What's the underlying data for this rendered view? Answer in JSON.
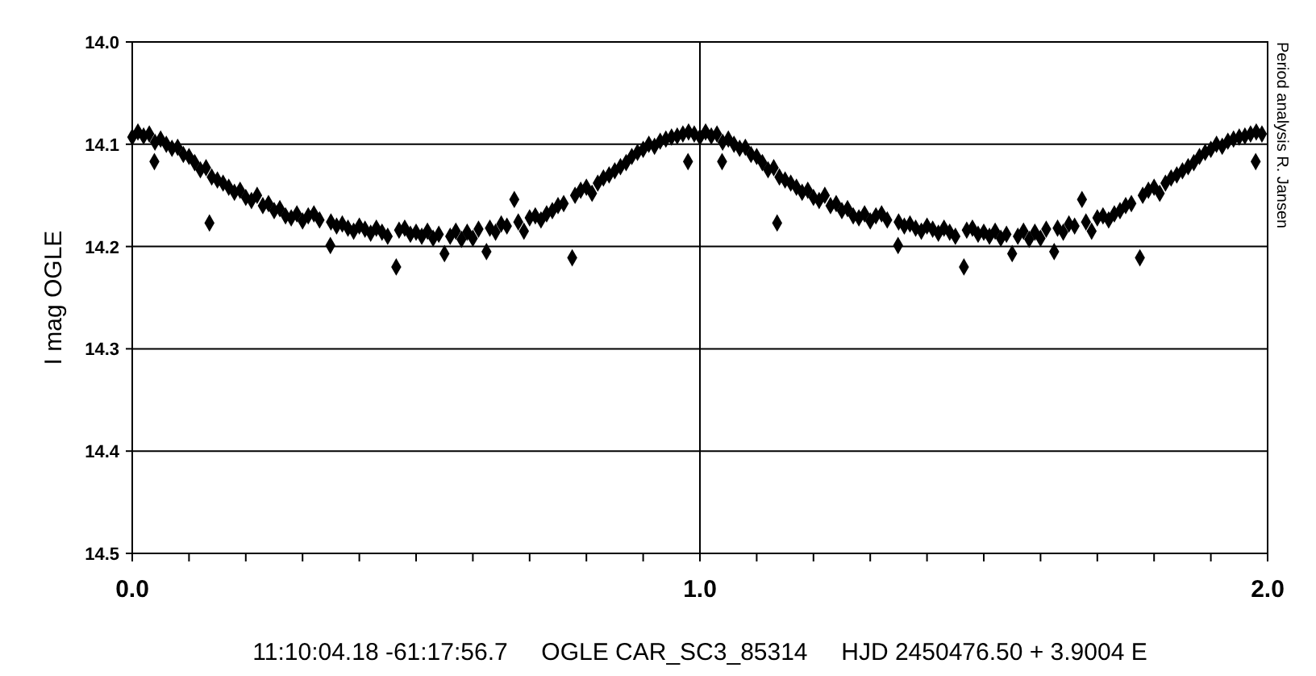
{
  "chart_data": {
    "type": "scatter",
    "xlabel": "11:10:04.18 -61:17:56.7     OGLE CAR_SC3_85314     HJD 2450476.50 + 3.9004 E",
    "ylabel": "I mag OGLE",
    "annotations": [
      "Period analysis R. Jansen"
    ],
    "marker": "diamond",
    "grid": true,
    "xlim": [
      0,
      2
    ],
    "ylim": [
      14.5,
      14.0
    ],
    "xticks": [
      {
        "value": 0,
        "label": "0.0"
      },
      {
        "value": 0.1,
        "label": null
      },
      {
        "value": 0.2,
        "label": null
      },
      {
        "value": 0.3,
        "label": null
      },
      {
        "value": 0.4,
        "label": null
      },
      {
        "value": 0.5,
        "label": null
      },
      {
        "value": 0.6,
        "label": null
      },
      {
        "value": 0.7,
        "label": null
      },
      {
        "value": 0.8,
        "label": null
      },
      {
        "value": 0.9,
        "label": null
      },
      {
        "value": 1,
        "label": "1.0"
      },
      {
        "value": 1.1,
        "label": null
      },
      {
        "value": 1.2,
        "label": null
      },
      {
        "value": 1.3,
        "label": null
      },
      {
        "value": 1.4,
        "label": null
      },
      {
        "value": 1.5,
        "label": null
      },
      {
        "value": 1.6,
        "label": null
      },
      {
        "value": 1.7,
        "label": null
      },
      {
        "value": 1.8,
        "label": null
      },
      {
        "value": 1.9,
        "label": null
      },
      {
        "value": 2,
        "label": "2.0"
      }
    ],
    "yticks": [
      {
        "value": 14.0,
        "label": "14.0"
      },
      {
        "value": 14.1,
        "label": "14.1"
      },
      {
        "value": 14.2,
        "label": "14.2"
      },
      {
        "value": 14.3,
        "label": "14.3"
      },
      {
        "value": 14.4,
        "label": "14.4"
      },
      {
        "value": 14.5,
        "label": "14.5"
      }
    ],
    "series": [
      {
        "color": "#000000",
        "x": [
          0.0,
          0.01,
          0.02,
          0.03,
          0.04,
          0.039,
          0.05,
          0.06,
          0.07,
          0.08,
          0.09,
          0.1,
          0.11,
          0.12,
          0.13,
          0.136,
          0.14,
          0.15,
          0.16,
          0.17,
          0.18,
          0.19,
          0.2,
          0.21,
          0.22,
          0.23,
          0.24,
          0.25,
          0.26,
          0.27,
          0.28,
          0.29,
          0.3,
          0.31,
          0.32,
          0.33,
          0.349,
          0.35,
          0.36,
          0.37,
          0.38,
          0.39,
          0.4,
          0.41,
          0.42,
          0.43,
          0.44,
          0.45,
          0.465,
          0.47,
          0.48,
          0.49,
          0.5,
          0.51,
          0.52,
          0.53,
          0.54,
          0.55,
          0.56,
          0.57,
          0.58,
          0.59,
          0.6,
          0.61,
          0.624,
          0.63,
          0.64,
          0.65,
          0.66,
          0.673,
          0.68,
          0.69,
          0.7,
          0.71,
          0.72,
          0.73,
          0.74,
          0.75,
          0.76,
          0.775,
          0.78,
          0.79,
          0.8,
          0.81,
          0.82,
          0.83,
          0.84,
          0.85,
          0.86,
          0.87,
          0.88,
          0.89,
          0.9,
          0.91,
          0.92,
          0.93,
          0.94,
          0.95,
          0.96,
          0.97,
          0.979,
          0.98,
          0.99
        ],
        "values": [
          14.093,
          14.088,
          14.092,
          14.09,
          14.098,
          14.117,
          14.095,
          14.1,
          14.104,
          14.103,
          14.11,
          14.112,
          14.118,
          14.125,
          14.123,
          14.177,
          14.132,
          14.135,
          14.138,
          14.142,
          14.147,
          14.145,
          14.152,
          14.155,
          14.15,
          14.16,
          14.158,
          14.165,
          14.163,
          14.17,
          14.172,
          14.168,
          14.175,
          14.17,
          14.168,
          14.174,
          14.199,
          14.176,
          14.18,
          14.178,
          14.182,
          14.185,
          14.18,
          14.183,
          14.187,
          14.182,
          14.186,
          14.19,
          14.22,
          14.184,
          14.182,
          14.188,
          14.186,
          14.19,
          14.185,
          14.192,
          14.188,
          14.207,
          14.19,
          14.185,
          14.193,
          14.186,
          14.192,
          14.183,
          14.205,
          14.182,
          14.186,
          14.178,
          14.18,
          14.154,
          14.176,
          14.185,
          14.172,
          14.17,
          14.174,
          14.168,
          14.165,
          14.16,
          14.158,
          14.211,
          14.15,
          14.145,
          14.142,
          14.148,
          14.138,
          14.133,
          14.13,
          14.126,
          14.122,
          14.118,
          14.112,
          14.108,
          14.105,
          14.1,
          14.102,
          14.097,
          14.095,
          14.093,
          14.092,
          14.09,
          14.117,
          14.088,
          14.09
        ]
      },
      {
        "color": "#000000",
        "x": [
          1.0,
          1.01,
          1.02,
          1.03,
          1.04,
          1.039,
          1.05,
          1.06,
          1.07,
          1.08,
          1.09,
          1.1,
          1.11,
          1.12,
          1.13,
          1.136,
          1.14,
          1.15,
          1.16,
          1.17,
          1.18,
          1.19,
          1.2,
          1.21,
          1.22,
          1.23,
          1.24,
          1.25,
          1.26,
          1.27,
          1.28,
          1.29,
          1.3,
          1.31,
          1.32,
          1.33,
          1.349,
          1.35,
          1.36,
          1.37,
          1.38,
          1.39,
          1.4,
          1.41,
          1.42,
          1.43,
          1.44,
          1.45,
          1.465,
          1.47,
          1.48,
          1.49,
          1.5,
          1.51,
          1.52,
          1.53,
          1.54,
          1.55,
          1.56,
          1.57,
          1.58,
          1.59,
          1.6,
          1.61,
          1.624,
          1.63,
          1.64,
          1.65,
          1.66,
          1.673,
          1.68,
          1.69,
          1.7,
          1.71,
          1.72,
          1.73,
          1.74,
          1.75,
          1.76,
          1.775,
          1.78,
          1.79,
          1.8,
          1.81,
          1.82,
          1.83,
          1.84,
          1.85,
          1.86,
          1.87,
          1.88,
          1.89,
          1.9,
          1.91,
          1.92,
          1.93,
          1.94,
          1.95,
          1.96,
          1.97,
          1.979,
          1.98,
          1.99
        ],
        "values": [
          14.093,
          14.088,
          14.092,
          14.09,
          14.098,
          14.117,
          14.095,
          14.1,
          14.104,
          14.103,
          14.11,
          14.112,
          14.118,
          14.125,
          14.123,
          14.177,
          14.132,
          14.135,
          14.138,
          14.142,
          14.147,
          14.145,
          14.152,
          14.155,
          14.15,
          14.16,
          14.158,
          14.165,
          14.163,
          14.17,
          14.172,
          14.168,
          14.175,
          14.17,
          14.168,
          14.174,
          14.199,
          14.176,
          14.18,
          14.178,
          14.182,
          14.185,
          14.18,
          14.183,
          14.187,
          14.182,
          14.186,
          14.19,
          14.22,
          14.184,
          14.182,
          14.188,
          14.186,
          14.19,
          14.185,
          14.192,
          14.188,
          14.207,
          14.19,
          14.185,
          14.193,
          14.186,
          14.192,
          14.183,
          14.205,
          14.182,
          14.186,
          14.178,
          14.18,
          14.154,
          14.176,
          14.185,
          14.172,
          14.17,
          14.174,
          14.168,
          14.165,
          14.16,
          14.158,
          14.211,
          14.15,
          14.145,
          14.142,
          14.148,
          14.138,
          14.133,
          14.13,
          14.126,
          14.122,
          14.118,
          14.112,
          14.108,
          14.105,
          14.1,
          14.102,
          14.097,
          14.095,
          14.093,
          14.092,
          14.09,
          14.117,
          14.088,
          14.09
        ]
      }
    ]
  }
}
